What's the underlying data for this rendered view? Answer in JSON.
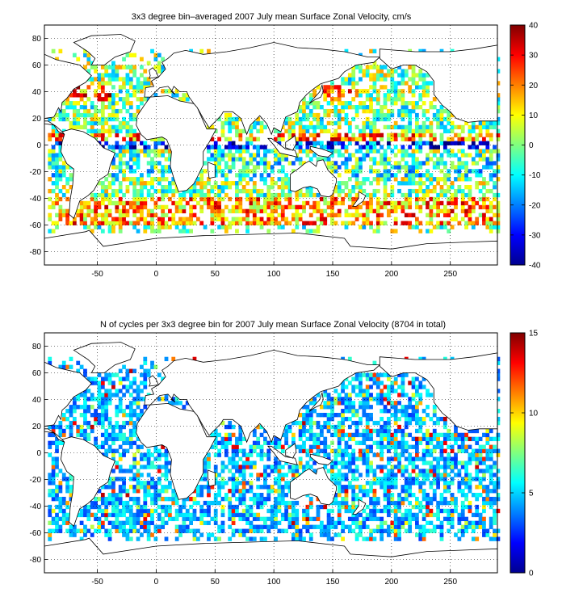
{
  "chart_data": [
    {
      "type": "heatmap",
      "title": "3x3 degree bin–averaged 2007 July mean Surface Zonal Velocity, cm/s",
      "xlim": [
        -95,
        290
      ],
      "ylim": [
        -90,
        90
      ],
      "x_ticks": [
        "-50",
        "0",
        "50",
        "100",
        "150",
        "200",
        "250"
      ],
      "y_ticks": [
        "80",
        "60",
        "40",
        "20",
        "0",
        "-20",
        "-40",
        "-60",
        "-80"
      ],
      "grid": "dotted",
      "colorbar": {
        "min": -40,
        "max": 40,
        "ticks": [
          "40",
          "30",
          "20",
          "10",
          "0",
          "-10",
          "-20",
          "-30",
          "-40"
        ],
        "colormap": "jet"
      },
      "bin_size_deg": 3,
      "values_note": "gridded ocean field"
    },
    {
      "type": "heatmap",
      "title": "N of cycles per 3x3 degree bin for 2007 July mean Surface Zonal Velocity (8704 in total)",
      "xlim": [
        -95,
        290
      ],
      "ylim": [
        -90,
        90
      ],
      "x_ticks": [
        "-50",
        "0",
        "50",
        "100",
        "150",
        "200",
        "250"
      ],
      "y_ticks": [
        "80",
        "60",
        "40",
        "20",
        "0",
        "-20",
        "-40",
        "-60",
        "-80"
      ],
      "grid": "dotted",
      "colorbar": {
        "min": 0,
        "max": 15,
        "ticks": [
          "15",
          "10",
          "5",
          "0"
        ],
        "colormap": "jet"
      },
      "bin_size_deg": 3
    }
  ],
  "colors": {
    "frame": "#000000",
    "land_outline": "#000000",
    "grid": "#000000",
    "background": "#ffffff"
  }
}
